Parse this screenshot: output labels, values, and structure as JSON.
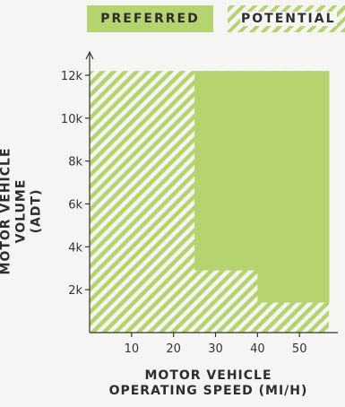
{
  "legend": {
    "preferred": "PREFERRED",
    "potential": "POTENTIAL",
    "preferred_color": "#b5d36f",
    "potential_color": "#b5d36f"
  },
  "chart_data": {
    "type": "area",
    "xlabel_line1": "MOTOR VEHICLE",
    "xlabel_line2": "OPERATING SPEED (MI/H)",
    "ylabel_line1": "MOTOR VEHICLE VOLUME",
    "ylabel_line2": "(ADT)",
    "xlim": [
      0,
      57
    ],
    "ylim": [
      0,
      12500
    ],
    "x_ticks": [
      {
        "value": 10,
        "label": "10"
      },
      {
        "value": 20,
        "label": "20"
      },
      {
        "value": 30,
        "label": "30"
      },
      {
        "value": 40,
        "label": "40"
      },
      {
        "value": 50,
        "label": "50"
      }
    ],
    "y_ticks": [
      {
        "value": 2000,
        "label": "2k"
      },
      {
        "value": 4000,
        "label": "4k"
      },
      {
        "value": 6000,
        "label": "6k"
      },
      {
        "value": 8000,
        "label": "8k"
      },
      {
        "value": 10000,
        "label": "10k"
      },
      {
        "value": 12000,
        "label": "12k"
      }
    ],
    "series": [
      {
        "name": "POTENTIAL",
        "pattern": "hatched",
        "rect": {
          "x0": 0,
          "x1": 57,
          "y0": 0,
          "y1": 12200
        }
      },
      {
        "name": "PREFERRED",
        "pattern": "solid",
        "steps": [
          {
            "x0": 25,
            "x1": 40,
            "y0": 2900,
            "y1": 12200
          },
          {
            "x0": 40,
            "x1": 57,
            "y0": 1400,
            "y1": 12200
          }
        ]
      }
    ],
    "grid": false
  }
}
